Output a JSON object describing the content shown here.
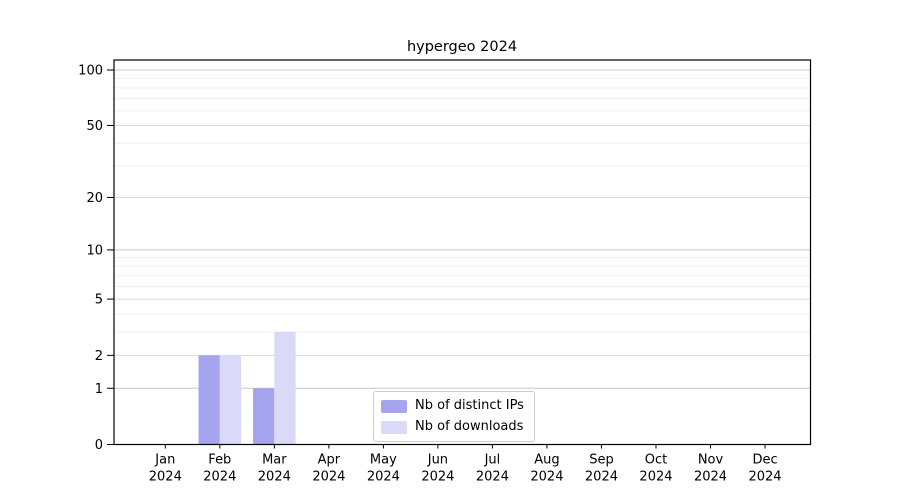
{
  "page": {
    "title": "hypergeo 2024"
  },
  "chart_data": {
    "type": "bar",
    "title": "hypergeo 2024",
    "xlabel": "",
    "ylabel": "",
    "categories": [
      "Jan 2024",
      "Feb 2024",
      "Mar 2024",
      "Apr 2024",
      "May 2024",
      "Jun 2024",
      "Jul 2024",
      "Aug 2024",
      "Sep 2024",
      "Oct 2024",
      "Nov 2024",
      "Dec 2024"
    ],
    "series": [
      {
        "name": "Nb of distinct IPs",
        "color": "#a4a4ef",
        "values": [
          0,
          2,
          1,
          0,
          0,
          0,
          0,
          0,
          0,
          0,
          0,
          0
        ]
      },
      {
        "name": "Nb of downloads",
        "color": "#dadaf8",
        "values": [
          0,
          2,
          3,
          0,
          0,
          0,
          0,
          0,
          0,
          0,
          0,
          0
        ]
      }
    ],
    "y_scale": "log10(1+y)",
    "y_ticks": [
      0,
      1,
      2,
      5,
      10,
      20,
      50,
      100
    ],
    "y_minor_ticks": [
      3,
      4,
      6,
      7,
      8,
      9,
      30,
      40,
      60,
      70,
      80,
      90
    ],
    "ylim": [
      0,
      113
    ],
    "grid": "horizontal",
    "legend": {
      "position": "lower center",
      "labels": [
        "Nb of distinct IPs",
        "Nb of downloads"
      ]
    }
  }
}
